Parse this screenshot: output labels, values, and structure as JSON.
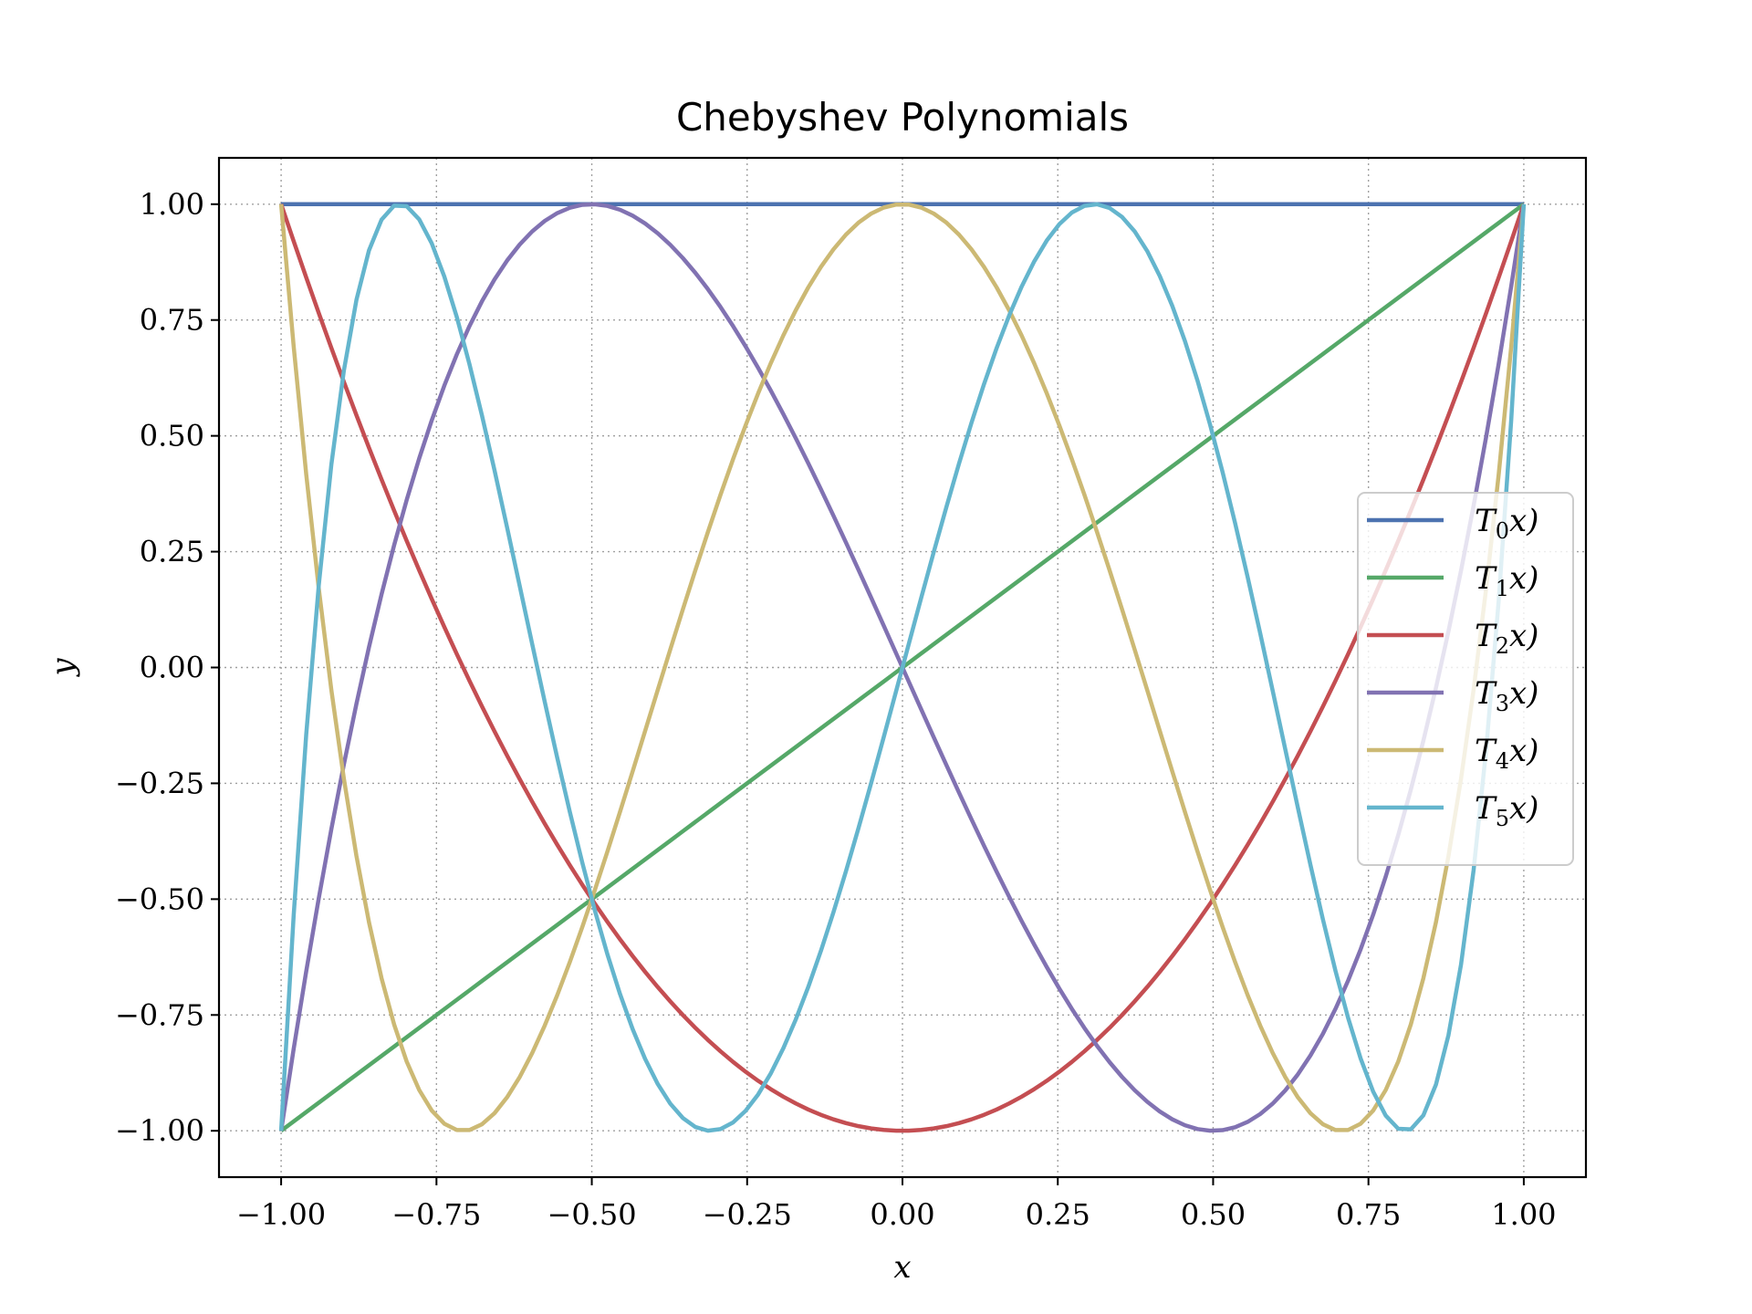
{
  "chart_data": {
    "type": "line",
    "title": "Chebyshev Polynomials",
    "xlabel": "x",
    "ylabel": "y",
    "xlim": [
      -1.1,
      1.1
    ],
    "ylim": [
      -1.1,
      1.1
    ],
    "xticks": [
      -1.0,
      -0.75,
      -0.5,
      -0.25,
      0.0,
      0.25,
      0.5,
      0.75,
      1.0
    ],
    "yticks": [
      -1.0,
      -0.75,
      -0.5,
      -0.25,
      0.0,
      0.25,
      0.5,
      0.75,
      1.0
    ],
    "xtick_labels": [
      "−1.00",
      "−0.75",
      "−0.50",
      "−0.25",
      "0.00",
      "0.25",
      "0.50",
      "0.75",
      "1.00"
    ],
    "ytick_labels": [
      "−1.00",
      "−0.75",
      "−0.50",
      "−0.25",
      "0.00",
      "0.25",
      "0.50",
      "0.75",
      "1.00"
    ],
    "grid": true,
    "legend_position": "right",
    "x_range": [
      -1.0,
      1.0
    ],
    "series": [
      {
        "name": "T0x)",
        "label_main": "T",
        "label_sub": "0",
        "label_tail": "x)",
        "degree": 0,
        "color": "#4c72b0"
      },
      {
        "name": "T1x)",
        "label_main": "T",
        "label_sub": "1",
        "label_tail": "x)",
        "degree": 1,
        "color": "#55a868"
      },
      {
        "name": "T2x)",
        "label_main": "T",
        "label_sub": "2",
        "label_tail": "x)",
        "degree": 2,
        "color": "#c44e52"
      },
      {
        "name": "T3x)",
        "label_main": "T",
        "label_sub": "3",
        "label_tail": "x)",
        "degree": 3,
        "color": "#8172b2"
      },
      {
        "name": "T4x)",
        "label_main": "T",
        "label_sub": "4",
        "label_tail": "x)",
        "degree": 4,
        "color": "#ccb974"
      },
      {
        "name": "T5x)",
        "label_main": "T",
        "label_sub": "5",
        "label_tail": "x)",
        "degree": 5,
        "color": "#64b5cd"
      }
    ]
  }
}
